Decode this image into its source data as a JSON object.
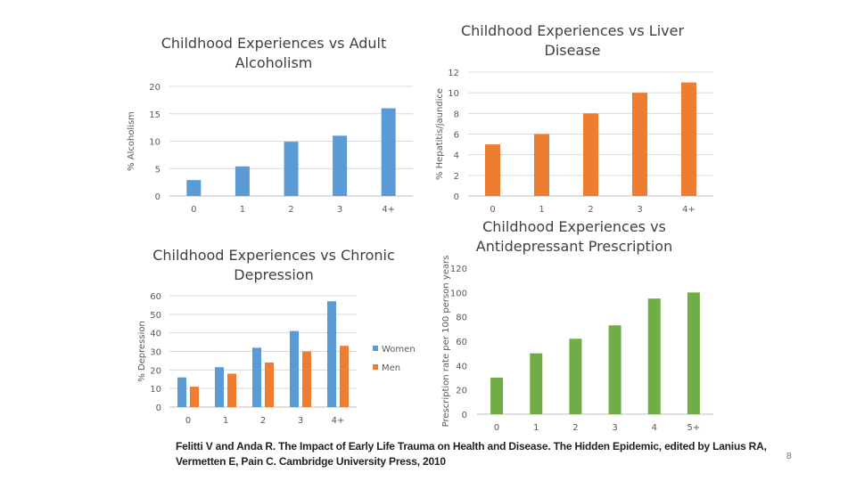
{
  "colors": {
    "blue": "#5b9bd5",
    "orange": "#ed7d31",
    "green": "#70ad47",
    "grid": "#d9d9d9"
  },
  "chart_data": [
    {
      "type": "bar",
      "title": "Childhood Experiences vs Adult Alcoholism",
      "title_lines": [
        "Childhood Experiences vs Adult",
        "Alcoholism"
      ],
      "ylabel": "% Alcoholism",
      "xlabel": "",
      "categories": [
        "0",
        "1",
        "2",
        "3",
        "4+"
      ],
      "series": [
        {
          "values": [
            2.9,
            5.4,
            9.9,
            11,
            16
          ],
          "color": "#5b9bd5"
        }
      ],
      "ylim": [
        0,
        20
      ],
      "yticks": [
        0,
        5,
        10,
        15,
        20
      ],
      "grid": true
    },
    {
      "type": "bar",
      "title": "Childhood Experiences vs Liver Disease",
      "title_lines": [
        "Childhood Experiences vs Liver",
        "Disease"
      ],
      "ylabel": "% Hepatitis/jaundice",
      "xlabel": "",
      "categories": [
        "0",
        "1",
        "2",
        "3",
        "4+"
      ],
      "series": [
        {
          "values": [
            5,
            6,
            8,
            10,
            11
          ],
          "color": "#ed7d31"
        }
      ],
      "ylim": [
        0,
        12
      ],
      "yticks": [
        0,
        2,
        4,
        6,
        8,
        10,
        12
      ],
      "grid": true
    },
    {
      "type": "bar",
      "title": "Childhood Experiences vs Chronic Depression",
      "title_lines": [
        "Childhood Experiences vs Chronic",
        "Depression"
      ],
      "ylabel": "% Depression",
      "xlabel": "",
      "categories": [
        "0",
        "1",
        "2",
        "3",
        "4+"
      ],
      "series": [
        {
          "name": "Women",
          "values": [
            16,
            21.5,
            32,
            41,
            57
          ],
          "color": "#5b9bd5"
        },
        {
          "name": "Men",
          "values": [
            11,
            18,
            24,
            30,
            33
          ],
          "color": "#ed7d31"
        }
      ],
      "ylim": [
        0,
        60
      ],
      "yticks": [
        0,
        10,
        20,
        30,
        40,
        50,
        60
      ],
      "grid": true,
      "legend": "right"
    },
    {
      "type": "bar",
      "title": "Childhood Experiences vs Antidepressant Prescription",
      "title_lines": [
        "Childhood Experiences vs",
        "Antidepressant Prescription"
      ],
      "ylabel": "Prescription rate per 100 person years",
      "xlabel": "",
      "categories": [
        "0",
        "1",
        "2",
        "3",
        "4",
        "5+"
      ],
      "series": [
        {
          "values": [
            30,
            50,
            62,
            73,
            95,
            100
          ],
          "color": "#70ad47"
        }
      ],
      "ylim": [
        0,
        120
      ],
      "yticks": [
        0,
        20,
        40,
        60,
        80,
        100,
        120
      ],
      "grid": false
    }
  ],
  "citation": {
    "line1": "Felitti V and Anda R. The Impact of Early Life Trauma on Health and Disease. The Hidden Epidemic, edited by Lanius RA,",
    "line2": "Vermetten E, Pain C.  Cambridge University Press, 2010"
  },
  "page_number": "8"
}
